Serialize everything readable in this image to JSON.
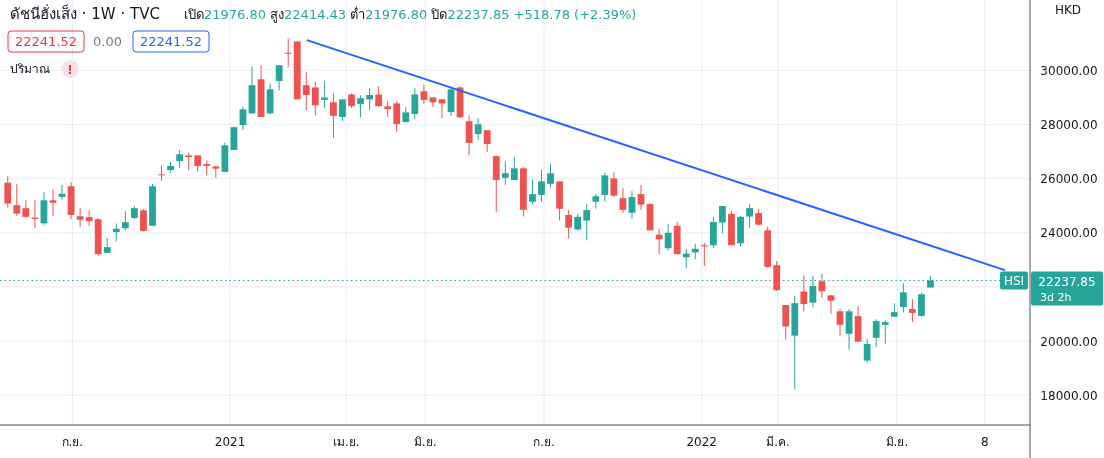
{
  "chart_data": {
    "type": "candlestick",
    "title": "ดัชนีฮั่งเส็ง · 1W · TVC",
    "subtitle": "เปิด21976.80 สูง22414.43 ต่ำ21976.80 ปิด22237.85 +518.78 (+2.39%)",
    "annotations": [
      "22241.52",
      "0.00",
      "22241.52",
      "ปริมาณ",
      "!",
      "HKD",
      "22237.85",
      "3d 2h"
    ],
    "xlim": [
      "2020-07-07",
      "2022-09-12"
    ],
    "ylim": [
      16900,
      32600
    ],
    "xticks": [
      {
        "value": "2020-09-01",
        "label": "ก.ย."
      },
      {
        "value": "2021-01-01",
        "label": "2021"
      },
      {
        "value": "2021-04-01",
        "label": "เม.ย."
      },
      {
        "value": "2021-06-01",
        "label": "มิ.ย."
      },
      {
        "value": "2021-09-01",
        "label": "ก.ย."
      },
      {
        "value": "2022-01-01",
        "label": "2022"
      },
      {
        "value": "2022-03-01",
        "label": "มี.ค."
      },
      {
        "value": "2022-06-01",
        "label": "มิ.ย."
      },
      {
        "value": "2022-08-08",
        "label": "8"
      }
    ],
    "yticks": [
      {
        "value": 18000,
        "label": "18000.00"
      },
      {
        "value": 20000,
        "label": "20000.00"
      },
      {
        "value": 22000,
        "label": null
      },
      {
        "value": 24000,
        "label": "24000.00"
      },
      {
        "value": 26000,
        "label": "26000.00"
      },
      {
        "value": 28000,
        "label": "28000.00"
      },
      {
        "value": 30000,
        "label": "30000.00"
      }
    ],
    "grid": true,
    "ref_lines": [
      {
        "axis": "y",
        "value": 22237.85,
        "label": "HSI",
        "color": "#26a69a",
        "line_style": "dotted"
      }
    ],
    "series": [
      {
        "x": [
          "2020-07-13",
          "2020-07-20",
          "2020-07-27",
          "2020-08-03",
          "2020-08-10",
          "2020-08-17",
          "2020-08-24",
          "2020-08-31",
          "2020-09-07",
          "2020-09-14",
          "2020-09-21",
          "2020-09-28",
          "2020-10-05",
          "2020-10-12",
          "2020-10-19",
          "2020-10-26",
          "2020-11-02",
          "2020-11-09",
          "2020-11-16",
          "2020-11-23",
          "2020-11-30",
          "2020-12-07",
          "2020-12-14",
          "2020-12-21",
          "2020-12-28",
          "2021-01-04",
          "2021-01-11",
          "2021-01-18",
          "2021-01-25",
          "2021-02-01",
          "2021-02-08",
          "2021-02-15",
          "2021-02-22",
          "2021-03-01",
          "2021-03-08",
          "2021-03-15",
          "2021-03-22",
          "2021-03-29",
          "2021-04-05",
          "2021-04-12",
          "2021-04-19",
          "2021-04-26",
          "2021-05-03",
          "2021-05-10",
          "2021-05-17",
          "2021-05-24",
          "2021-05-31",
          "2021-06-07",
          "2021-06-14",
          "2021-06-21",
          "2021-06-28",
          "2021-07-05",
          "2021-07-12",
          "2021-07-19",
          "2021-07-26",
          "2021-08-02",
          "2021-08-09",
          "2021-08-16",
          "2021-08-23",
          "2021-08-30",
          "2021-09-06",
          "2021-09-13",
          "2021-09-20",
          "2021-09-27",
          "2021-10-04",
          "2021-10-11",
          "2021-10-18",
          "2021-10-25",
          "2021-11-01",
          "2021-11-08",
          "2021-11-15",
          "2021-11-22",
          "2021-11-29",
          "2021-12-06",
          "2021-12-13",
          "2021-12-20",
          "2021-12-27",
          "2022-01-03",
          "2022-01-10",
          "2022-01-17",
          "2022-01-24",
          "2022-01-31",
          "2022-02-07",
          "2022-02-14",
          "2022-02-21",
          "2022-02-28",
          "2022-03-07",
          "2022-03-14",
          "2022-03-21",
          "2022-03-28",
          "2022-04-04",
          "2022-04-11",
          "2022-04-18",
          "2022-04-25",
          "2022-05-02",
          "2022-05-09",
          "2022-05-16",
          "2022-05-23",
          "2022-05-30",
          "2022-06-06",
          "2022-06-13",
          "2022-06-20",
          "2022-06-27"
        ],
        "ohlc": [
          [
            25850,
            26100,
            24930,
            25080
          ],
          [
            25020,
            25790,
            24630,
            24710
          ],
          [
            24910,
            25200,
            24560,
            24590
          ],
          [
            24560,
            25200,
            24180,
            24510
          ],
          [
            24350,
            25500,
            24290,
            25200
          ],
          [
            25200,
            25610,
            24630,
            25110
          ],
          [
            25330,
            25770,
            25220,
            25440
          ],
          [
            25720,
            25870,
            24500,
            24660
          ],
          [
            24610,
            24910,
            24210,
            24480
          ],
          [
            24580,
            24830,
            24260,
            24430
          ],
          [
            24500,
            24540,
            23150,
            23210
          ],
          [
            23260,
            23800,
            23260,
            23470
          ],
          [
            24030,
            24350,
            23690,
            24150
          ],
          [
            24170,
            24800,
            24100,
            24390
          ],
          [
            24550,
            24980,
            24500,
            24910
          ],
          [
            24830,
            24870,
            24050,
            24070
          ],
          [
            24260,
            25810,
            24260,
            25720
          ],
          [
            26160,
            26490,
            25920,
            26130
          ],
          [
            26320,
            26620,
            26210,
            26470
          ],
          [
            26650,
            27060,
            26400,
            26900
          ],
          [
            26860,
            26960,
            26320,
            26800
          ],
          [
            26860,
            26860,
            26270,
            26470
          ],
          [
            26540,
            26670,
            26130,
            26470
          ],
          [
            26450,
            26490,
            26030,
            26370
          ],
          [
            26250,
            27330,
            26250,
            27230
          ],
          [
            27060,
            27920,
            27060,
            27900
          ],
          [
            27980,
            28660,
            27800,
            28560
          ],
          [
            28410,
            30150,
            28380,
            29450
          ],
          [
            29670,
            30190,
            28280,
            28280
          ],
          [
            28410,
            29520,
            28380,
            29300
          ],
          [
            29610,
            30190,
            29260,
            30190
          ],
          [
            30650,
            31180,
            30120,
            30630
          ],
          [
            31070,
            31070,
            28930,
            28930
          ],
          [
            29450,
            29940,
            28520,
            29090
          ],
          [
            29370,
            29570,
            28340,
            28710
          ],
          [
            28910,
            29610,
            28600,
            29000
          ],
          [
            28820,
            29150,
            27500,
            28320
          ],
          [
            28280,
            28930,
            28130,
            28930
          ],
          [
            29110,
            29150,
            28610,
            28680
          ],
          [
            28760,
            29080,
            28270,
            28970
          ],
          [
            28930,
            29340,
            28540,
            29090
          ],
          [
            29110,
            29410,
            28650,
            28680
          ],
          [
            28670,
            28890,
            28280,
            28570
          ],
          [
            28780,
            28860,
            27720,
            28020
          ],
          [
            28090,
            28640,
            28090,
            28450
          ],
          [
            28390,
            29340,
            28200,
            29110
          ],
          [
            29230,
            29480,
            28750,
            28910
          ],
          [
            29000,
            29000,
            28640,
            28820
          ],
          [
            28930,
            28930,
            28230,
            28780
          ],
          [
            28460,
            29340,
            28320,
            29300
          ],
          [
            29370,
            29410,
            28230,
            28270
          ],
          [
            28120,
            28340,
            26860,
            27320
          ],
          [
            27650,
            28230,
            27430,
            28010
          ],
          [
            27790,
            27790,
            26990,
            27280
          ],
          [
            26830,
            26860,
            24770,
            25950
          ],
          [
            26030,
            26640,
            25770,
            26200
          ],
          [
            25950,
            26810,
            25950,
            26380
          ],
          [
            26380,
            26440,
            24600,
            24850
          ],
          [
            25150,
            25980,
            25060,
            25430
          ],
          [
            25400,
            26340,
            25150,
            25900
          ],
          [
            25810,
            26560,
            25660,
            26200
          ],
          [
            25900,
            25900,
            24450,
            24890
          ],
          [
            24660,
            24840,
            23790,
            24190
          ],
          [
            24120,
            24700,
            24090,
            24590
          ],
          [
            24450,
            25060,
            23720,
            24840
          ],
          [
            25150,
            25430,
            24890,
            25350
          ],
          [
            25400,
            26230,
            25150,
            26120
          ],
          [
            26010,
            26230,
            25330,
            25370
          ],
          [
            25280,
            25650,
            24740,
            24850
          ],
          [
            24740,
            25540,
            24520,
            25320
          ],
          [
            25430,
            25760,
            24850,
            25040
          ],
          [
            25060,
            25100,
            24090,
            24090
          ],
          [
            23930,
            24150,
            23210,
            23760
          ],
          [
            23430,
            24330,
            23350,
            24000
          ],
          [
            24260,
            24400,
            23210,
            23210
          ],
          [
            23100,
            23410,
            22680,
            23230
          ],
          [
            23280,
            23600,
            23020,
            23410
          ],
          [
            23540,
            23630,
            22770,
            23500
          ],
          [
            23540,
            24590,
            23430,
            24400
          ],
          [
            24380,
            24990,
            23980,
            24990
          ],
          [
            24700,
            24800,
            23540,
            23540
          ],
          [
            23610,
            24620,
            23500,
            24590
          ],
          [
            24600,
            25060,
            24190,
            24910
          ],
          [
            24730,
            24880,
            24270,
            24300
          ],
          [
            24090,
            24220,
            22710,
            22740
          ],
          [
            22800,
            22960,
            21850,
            21890
          ],
          [
            21330,
            21330,
            20070,
            20540
          ],
          [
            20200,
            21670,
            18230,
            21400
          ],
          [
            21830,
            22430,
            21100,
            21370
          ],
          [
            21420,
            22410,
            21240,
            22030
          ],
          [
            22210,
            22490,
            21600,
            21840
          ],
          [
            21690,
            21690,
            21010,
            21490
          ],
          [
            21100,
            21200,
            20200,
            20600
          ],
          [
            20270,
            21180,
            19680,
            21100
          ],
          [
            20920,
            21290,
            19980,
            19980
          ],
          [
            19280,
            20070,
            19200,
            19890
          ],
          [
            20120,
            20810,
            19790,
            20740
          ],
          [
            20600,
            20770,
            19900,
            20700
          ],
          [
            20900,
            21400,
            20900,
            21070
          ],
          [
            21260,
            22140,
            21060,
            21800
          ],
          [
            21180,
            21550,
            20700,
            21040
          ],
          [
            20930,
            21770,
            20900,
            21730
          ],
          [
            21976.8,
            22414.43,
            21976.8,
            22237.85
          ]
        ],
        "colors": [
          "#ef5350",
          "#ef5350",
          "#ef5350",
          "#ef5350",
          "#26a69a",
          "#ef5350",
          "#26a69a",
          "#ef5350",
          "#ef5350",
          "#ef5350",
          "#ef5350",
          "#26a69a",
          "#26a69a",
          "#26a69a",
          "#26a69a",
          "#ef5350",
          "#26a69a",
          "#ef5350",
          "#26a69a",
          "#26a69a",
          "#ef5350",
          "#ef5350",
          "#ef5350",
          "#ef5350",
          "#26a69a",
          "#26a69a",
          "#26a69a",
          "#26a69a",
          "#ef5350",
          "#26a69a",
          "#26a69a",
          "#ef5350",
          "#ef5350",
          "#ef5350",
          "#ef5350",
          "#26a69a",
          "#ef5350",
          "#26a69a",
          "#ef5350",
          "#26a69a",
          "#26a69a",
          "#ef5350",
          "#ef5350",
          "#ef5350",
          "#26a69a",
          "#26a69a",
          "#ef5350",
          "#ef5350",
          "#ef5350",
          "#26a69a",
          "#ef5350",
          "#ef5350",
          "#26a69a",
          "#ef5350",
          "#ef5350",
          "#26a69a",
          "#26a69a",
          "#ef5350",
          "#26a69a",
          "#26a69a",
          "#26a69a",
          "#ef5350",
          "#ef5350",
          "#26a69a",
          "#26a69a",
          "#26a69a",
          "#26a69a",
          "#ef5350",
          "#ef5350",
          "#26a69a",
          "#ef5350",
          "#ef5350",
          "#ef5350",
          "#26a69a",
          "#ef5350",
          "#26a69a",
          "#26a69a",
          "#ef5350",
          "#26a69a",
          "#26a69a",
          "#ef5350",
          "#26a69a",
          "#26a69a",
          "#ef5350",
          "#ef5350",
          "#ef5350",
          "#ef5350",
          "#26a69a",
          "#ef5350",
          "#26a69a",
          "#ef5350",
          "#ef5350",
          "#ef5350",
          "#26a69a",
          "#ef5350",
          "#26a69a",
          "#26a69a",
          "#26a69a",
          "#26a69a",
          "#26a69a",
          "#ef5350",
          "#26a69a",
          "#26a69a"
        ]
      },
      {
        "type": "line",
        "color": "#2962ff",
        "x": [
          "2021-03-02",
          "2022-08-23"
        ],
        "values": [
          31110,
          22630
        ]
      }
    ]
  }
}
